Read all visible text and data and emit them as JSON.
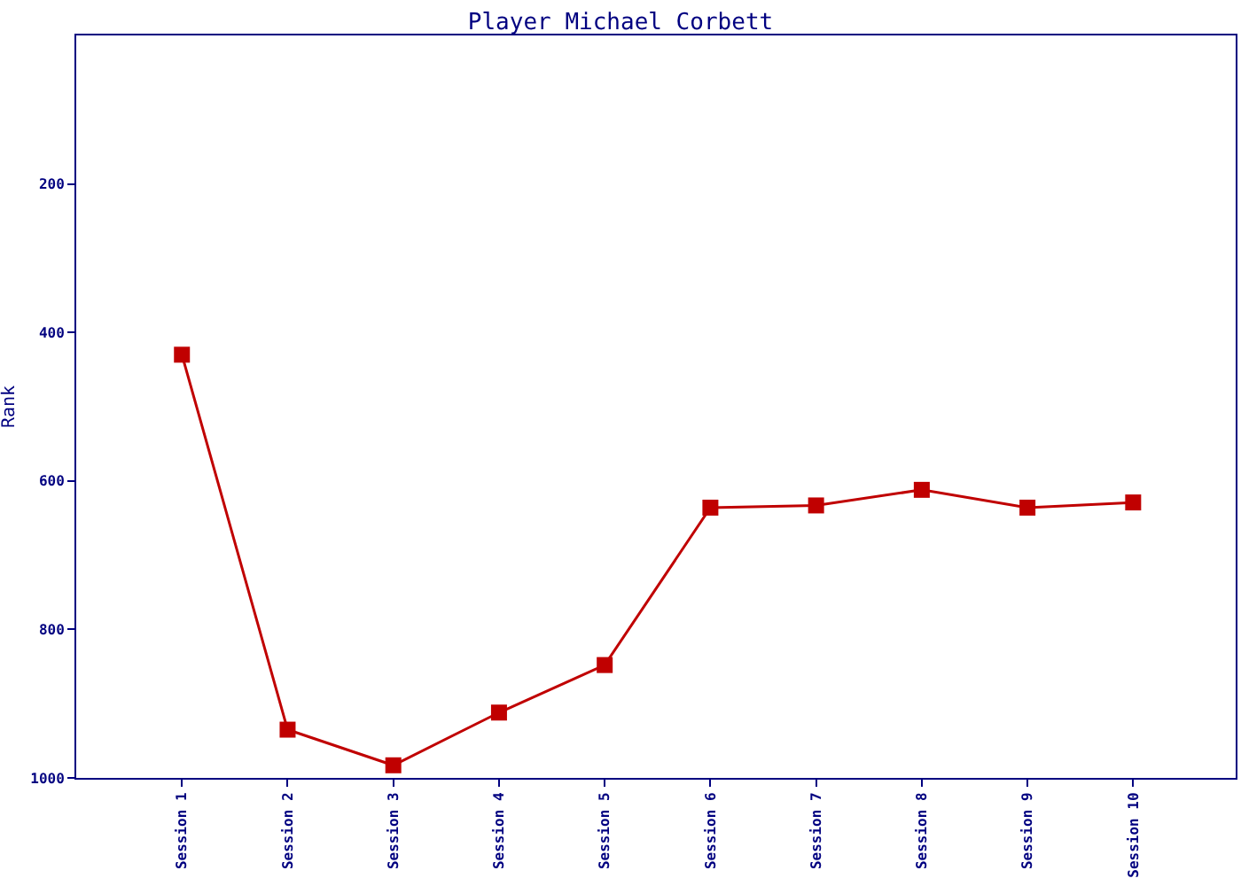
{
  "chart_data": {
    "type": "line",
    "title": "Player Michael Corbett",
    "ylabel": "Rank",
    "categories": [
      "Session 1",
      "Session 2",
      "Session 3",
      "Session 4",
      "Session 5",
      "Session 6",
      "Session 7",
      "Session 8",
      "Session 9",
      "Session 10"
    ],
    "series": [
      {
        "color": "#c00000",
        "values": [
          430,
          935,
          983,
          912,
          848,
          636,
          633,
          612,
          636,
          629
        ]
      }
    ],
    "ylim": [
      1000,
      0
    ],
    "yticks": [
      200,
      400,
      600,
      800,
      1000
    ],
    "legend": false,
    "marker": "square",
    "line_style": "solid"
  }
}
